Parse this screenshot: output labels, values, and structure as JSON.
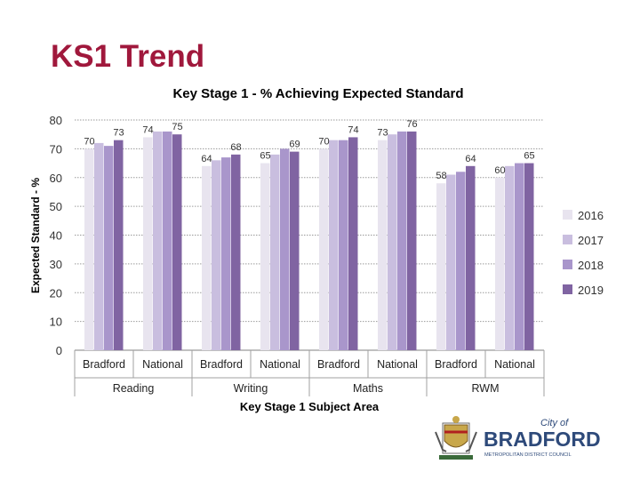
{
  "slide": {
    "title": "KS1 Trend"
  },
  "chart_data": {
    "type": "bar",
    "title": "Key Stage 1 - % Achieving Expected Standard",
    "xlabel": "Key Stage 1 Subject Area",
    "ylabel": "Expected Standard - %",
    "ylim": [
      0,
      80
    ],
    "yticks": [
      0,
      10,
      20,
      30,
      40,
      50,
      60,
      70,
      80
    ],
    "grid": true,
    "legend_position": "right",
    "groups": [
      "Reading",
      "Writing",
      "Maths",
      "RWM"
    ],
    "categories": [
      "Bradford",
      "National",
      "Bradford",
      "National",
      "Bradford",
      "National",
      "Bradford",
      "National"
    ],
    "category_groups": [
      {
        "group": "Reading",
        "category": "Bradford"
      },
      {
        "group": "Reading",
        "category": "National"
      },
      {
        "group": "Writing",
        "category": "Bradford"
      },
      {
        "group": "Writing",
        "category": "National"
      },
      {
        "group": "Maths",
        "category": "Bradford"
      },
      {
        "group": "Maths",
        "category": "National"
      },
      {
        "group": "RWM",
        "category": "Bradford"
      },
      {
        "group": "RWM",
        "category": "National"
      }
    ],
    "series": [
      {
        "name": "2016",
        "color": "#e8e4ef",
        "values": [
          70,
          74,
          64,
          65,
          70,
          73,
          58,
          60
        ]
      },
      {
        "name": "2017",
        "color": "#c9bedf",
        "values": [
          72,
          76,
          66,
          68,
          73,
          75,
          61,
          64
        ]
      },
      {
        "name": "2018",
        "color": "#a996cb",
        "values": [
          71,
          76,
          67,
          70,
          73,
          76,
          62,
          65
        ]
      },
      {
        "name": "2019",
        "color": "#8064a2",
        "values": [
          73,
          75,
          68,
          69,
          74,
          76,
          64,
          65
        ]
      }
    ],
    "data_labels": [
      {
        "category_index": 0,
        "value": 70,
        "text": "70",
        "series_index": 0
      },
      {
        "category_index": 0,
        "value": 73,
        "text": "73",
        "series_index": 3
      },
      {
        "category_index": 1,
        "value": 74,
        "text": "74",
        "series_index": 0
      },
      {
        "category_index": 1,
        "value": 75,
        "text": "75",
        "series_index": 3
      },
      {
        "category_index": 2,
        "value": 64,
        "text": "64",
        "series_index": 0
      },
      {
        "category_index": 2,
        "value": 68,
        "text": "68",
        "series_index": 3
      },
      {
        "category_index": 3,
        "value": 65,
        "text": "65",
        "series_index": 0
      },
      {
        "category_index": 3,
        "value": 69,
        "text": "69",
        "series_index": 3
      },
      {
        "category_index": 4,
        "value": 70,
        "text": "70",
        "series_index": 0
      },
      {
        "category_index": 4,
        "value": 74,
        "text": "74",
        "series_index": 3
      },
      {
        "category_index": 5,
        "value": 73,
        "text": "73",
        "series_index": 0
      },
      {
        "category_index": 5,
        "value": 76,
        "text": "76",
        "series_index": 3
      },
      {
        "category_index": 6,
        "value": 58,
        "text": "58",
        "series_index": 0
      },
      {
        "category_index": 6,
        "value": 64,
        "text": "64",
        "series_index": 3
      },
      {
        "category_index": 7,
        "value": 60,
        "text": "60",
        "series_index": 0
      },
      {
        "category_index": 7,
        "value": 65,
        "text": "65",
        "series_index": 3
      }
    ]
  },
  "logo": {
    "line1": "City of",
    "line2": "BRADFORD",
    "line3": "METROPOLITAN DISTRICT COUNCIL",
    "color": "#2e4a7a"
  }
}
